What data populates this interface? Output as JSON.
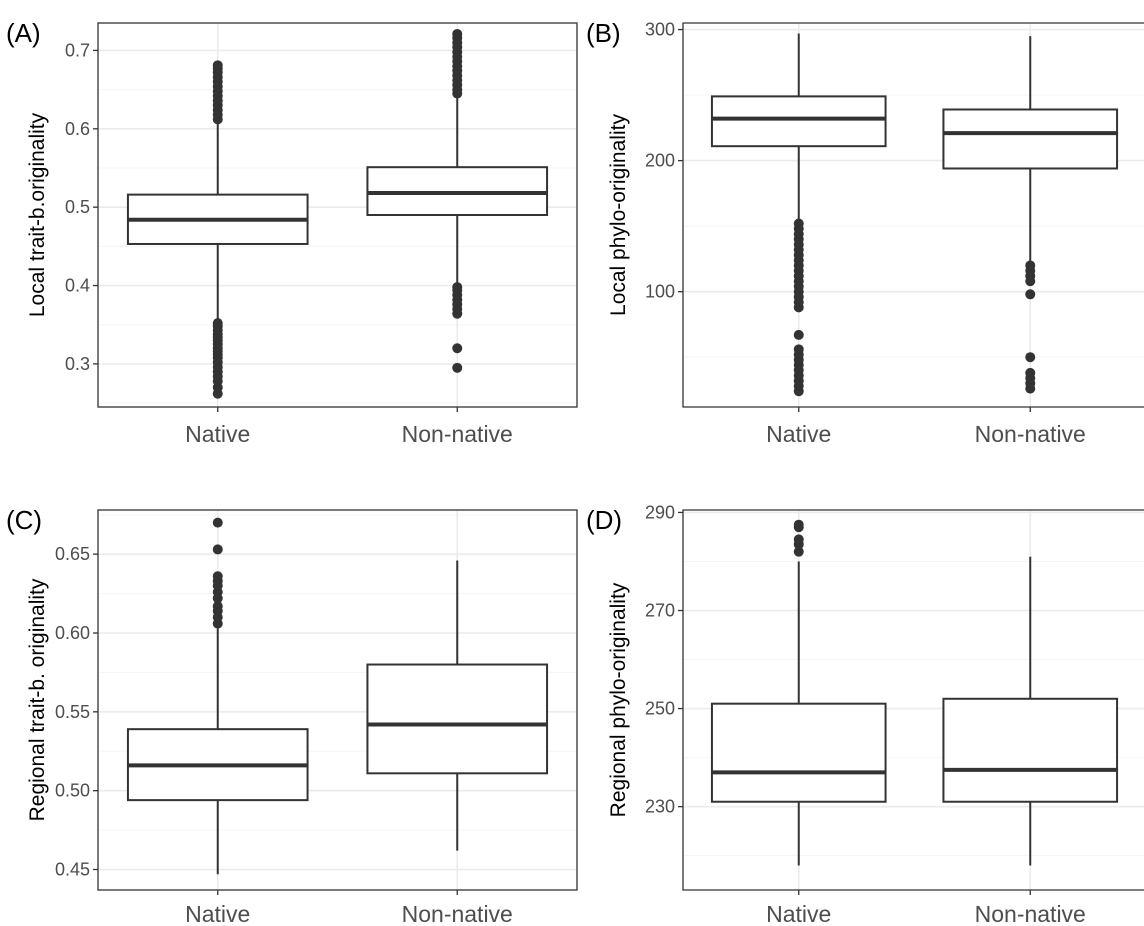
{
  "colors": {
    "panel_border": "#333333",
    "grid_major": "#ebebeb",
    "grid_minor": "#f5f5f5",
    "box_line": "#333333",
    "outlier": "#333333",
    "tick_text": "#4d4d4d"
  },
  "chart_data": [
    {
      "type": "box",
      "panel_tag": "(A)",
      "title": "",
      "xlabel": "",
      "ylabel": "Local trait-b.originality",
      "categories": [
        "Native",
        "Non-native"
      ],
      "ylim": [
        0.245,
        0.735
      ],
      "yticks": [
        0.3,
        0.4,
        0.5,
        0.6,
        0.7
      ],
      "ytick_labels": [
        "0.3",
        "0.4",
        "0.5",
        "0.6",
        "0.7"
      ],
      "grid": true,
      "boxes": [
        {
          "category": "Native",
          "whisker_low": 0.357,
          "q1": 0.453,
          "median": 0.484,
          "q3": 0.516,
          "whisker_high": 0.608,
          "outliers": [
            0.262,
            0.27,
            0.278,
            0.284,
            0.29,
            0.296,
            0.302,
            0.308,
            0.312,
            0.316,
            0.32,
            0.325,
            0.33,
            0.334,
            0.338,
            0.343,
            0.348,
            0.352,
            0.612,
            0.618,
            0.624,
            0.63,
            0.636,
            0.642,
            0.648,
            0.654,
            0.66,
            0.666,
            0.672,
            0.677,
            0.681
          ]
        },
        {
          "category": "Non-native",
          "whisker_low": 0.4,
          "q1": 0.49,
          "median": 0.518,
          "q3": 0.551,
          "whisker_high": 0.64,
          "outliers": [
            0.295,
            0.32,
            0.364,
            0.37,
            0.376,
            0.382,
            0.388,
            0.394,
            0.398,
            0.645,
            0.65,
            0.656,
            0.662,
            0.668,
            0.674,
            0.68,
            0.686,
            0.692,
            0.698,
            0.704,
            0.71,
            0.716,
            0.721
          ]
        }
      ]
    },
    {
      "type": "box",
      "panel_tag": "(B)",
      "title": "",
      "xlabel": "",
      "ylabel": "Local phylo-originality",
      "categories": [
        "Native",
        "Non-native"
      ],
      "ylim": [
        12,
        305
      ],
      "yticks": [
        100,
        200,
        300
      ],
      "ytick_labels": [
        "100",
        "200",
        "300"
      ],
      "grid": true,
      "boxes": [
        {
          "category": "Native",
          "whisker_low": 155,
          "q1": 211,
          "median": 232,
          "q3": 249,
          "whisker_high": 297,
          "outliers": [
            24,
            28,
            32,
            36,
            40,
            44,
            48,
            52,
            56,
            67,
            88,
            92,
            96,
            100,
            104,
            108,
            112,
            116,
            120,
            124,
            128,
            132,
            136,
            140,
            144,
            148,
            152
          ]
        },
        {
          "category": "Non-native",
          "whisker_low": 123,
          "q1": 194,
          "median": 221,
          "q3": 239,
          "whisker_high": 295,
          "outliers": [
            26,
            30,
            34,
            38,
            50,
            98,
            108,
            112,
            116,
            120
          ]
        }
      ]
    },
    {
      "type": "box",
      "panel_tag": "(C)",
      "title": "",
      "xlabel": "",
      "ylabel": "Regional trait-b. originality",
      "categories": [
        "Native",
        "Non-native"
      ],
      "ylim": [
        0.437,
        0.678
      ],
      "yticks": [
        0.45,
        0.5,
        0.55,
        0.6,
        0.65
      ],
      "ytick_labels": [
        "0.45",
        "0.50",
        "0.55",
        "0.60",
        "0.65"
      ],
      "grid": true,
      "boxes": [
        {
          "category": "Native",
          "whisker_low": 0.447,
          "q1": 0.494,
          "median": 0.516,
          "q3": 0.539,
          "whisker_high": 0.603,
          "outliers": [
            0.606,
            0.61,
            0.614,
            0.617,
            0.622,
            0.626,
            0.63,
            0.633,
            0.636,
            0.653,
            0.67
          ]
        },
        {
          "category": "Non-native",
          "whisker_low": 0.462,
          "q1": 0.511,
          "median": 0.542,
          "q3": 0.58,
          "whisker_high": 0.646,
          "outliers": []
        }
      ]
    },
    {
      "type": "box",
      "panel_tag": "(D)",
      "title": "",
      "xlabel": "",
      "ylabel": "Regional phylo-originality",
      "categories": [
        "Native",
        "Non-native"
      ],
      "ylim": [
        213,
        290.5
      ],
      "yticks": [
        230,
        250,
        270,
        290
      ],
      "ytick_labels": [
        "230",
        "250",
        "270",
        "290"
      ],
      "grid": true,
      "boxes": [
        {
          "category": "Native",
          "whisker_low": 218,
          "q1": 231,
          "median": 237,
          "q3": 251,
          "whisker_high": 280,
          "outliers": [
            282,
            283.5,
            284.5,
            287,
            287.5
          ]
        },
        {
          "category": "Non-native",
          "whisker_low": 218,
          "q1": 231,
          "median": 237.5,
          "q3": 252,
          "whisker_high": 281,
          "outliers": []
        }
      ]
    }
  ]
}
